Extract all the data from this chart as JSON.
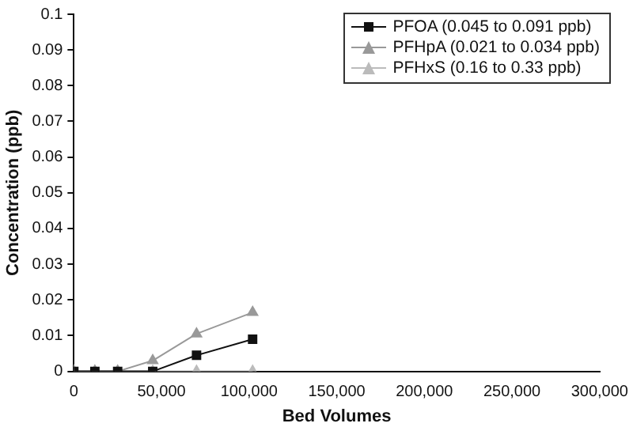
{
  "chart_data": {
    "type": "line",
    "xlabel": "Bed Volumes",
    "ylabel": "Concentration (ppb)",
    "x": [
      0,
      12000,
      25000,
      45000,
      70000,
      102000
    ],
    "series": [
      {
        "name": "PFOA (0.045 to 0.091 ppb)",
        "color": "#111111",
        "marker": "square",
        "values": [
          0,
          0,
          0,
          0,
          0.0045,
          0.009
        ]
      },
      {
        "name": "PFHpA (0.021 to 0.034 ppb)",
        "color": "#999999",
        "marker": "triangle",
        "values": [
          0,
          0,
          0,
          0.003,
          0.0105,
          0.0165
        ]
      },
      {
        "name": "PFHxS (0.16 to 0.33 ppb)",
        "color": "#bbbbbb",
        "marker": "triangle",
        "values": [
          0,
          0,
          0,
          0,
          0,
          0
        ]
      }
    ],
    "xlim": [
      0,
      300000
    ],
    "xticks": [
      0,
      {
        "value": 50000,
        "label": "50,000"
      },
      {
        "value": 100000,
        "label": "100,000"
      },
      {
        "value": 150000,
        "label": "150,000"
      },
      {
        "value": 200000,
        "label": "200,000"
      },
      {
        "value": 250000,
        "label": "250,000"
      },
      {
        "value": 300000,
        "label": "300,000"
      }
    ],
    "ylim": [
      0,
      0.1
    ],
    "yticks": [
      0,
      0.01,
      0.02,
      0.03,
      0.04,
      0.05,
      0.06,
      0.07,
      0.08,
      0.09,
      0.1
    ],
    "grid": false,
    "legend": "top right",
    "line_style": "solid"
  }
}
